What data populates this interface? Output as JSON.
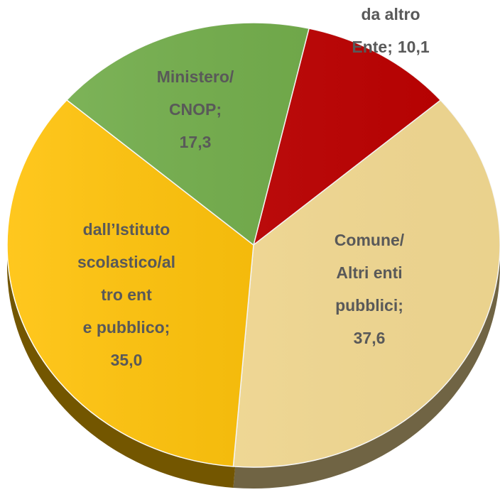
{
  "chart_data": {
    "type": "pie",
    "categories": [
      "da altro Ente;",
      "Comune/ Altri enti pubblici;",
      "dall’Istituto scolastico/altro ente pubblico;",
      "Ministero/ CNOP;"
    ],
    "values": [
      10.1,
      37.6,
      35.0,
      17.3
    ],
    "value_labels": [
      "10,1",
      "37,6",
      "35,0",
      "17,3"
    ],
    "colors": [
      "#c00000",
      "#f9df96",
      "#ffc000",
      "#70ad47"
    ]
  }
}
